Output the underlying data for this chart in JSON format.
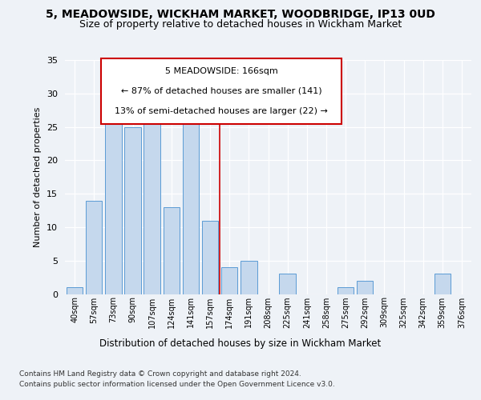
{
  "title1": "5, MEADOWSIDE, WICKHAM MARKET, WOODBRIDGE, IP13 0UD",
  "title2": "Size of property relative to detached houses in Wickham Market",
  "xlabel": "Distribution of detached houses by size in Wickham Market",
  "ylabel": "Number of detached properties",
  "categories": [
    "40sqm",
    "57sqm",
    "73sqm",
    "90sqm",
    "107sqm",
    "124sqm",
    "141sqm",
    "157sqm",
    "174sqm",
    "191sqm",
    "208sqm",
    "225sqm",
    "241sqm",
    "258sqm",
    "275sqm",
    "292sqm",
    "309sqm",
    "325sqm",
    "342sqm",
    "359sqm",
    "376sqm"
  ],
  "values": [
    1,
    14,
    26,
    25,
    27,
    13,
    28,
    11,
    4,
    5,
    0,
    3,
    0,
    0,
    1,
    2,
    0,
    0,
    0,
    3,
    0
  ],
  "bar_color": "#c5d8ed",
  "bar_edge_color": "#5b9bd5",
  "vline_color": "#cc0000",
  "box_edge_color": "#cc0000",
  "background_color": "#eef2f7",
  "plot_bg_color": "#eef2f7",
  "grid_color": "#ffffff",
  "ylim": [
    0,
    35
  ],
  "yticks": [
    0,
    5,
    10,
    15,
    20,
    25,
    30,
    35
  ],
  "annotation_text_line1": "5 MEADOWSIDE: 166sqm",
  "annotation_text_line2": "← 87% of detached houses are smaller (141)",
  "annotation_text_line3": "13% of semi-detached houses are larger (22) →",
  "footer_line1": "Contains HM Land Registry data © Crown copyright and database right 2024.",
  "footer_line2": "Contains public sector information licensed under the Open Government Licence v3.0."
}
